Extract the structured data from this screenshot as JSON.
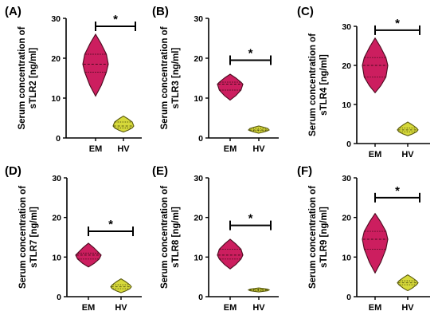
{
  "colors": {
    "em_fill": "#CC1E5F",
    "em_stroke": "#4A0A1E",
    "hv_fill": "#D6D93A",
    "hv_stroke": "#5A5A10",
    "axis": "#000000"
  },
  "chart_data": [
    {
      "type": "violin",
      "panel_label": "(A)",
      "ylabel_line1": "Serum concentration of",
      "ylabel_line2": "sTLR2 [ng/ml]",
      "ylim": [
        0,
        30
      ],
      "yticks": [
        "0",
        "10",
        "20",
        "30"
      ],
      "categories": [
        "EM",
        "HV"
      ],
      "series": [
        {
          "values": {
            "min": 10.5,
            "q1": 16.5,
            "median": 18.5,
            "q3": 21,
            "max": 26
          }
        },
        {
          "values": {
            "min": 1.5,
            "q1": 2.5,
            "median": 3,
            "q3": 4,
            "max": 5.5
          }
        }
      ],
      "significance": "*",
      "bracket_y": 28
    },
    {
      "type": "violin",
      "panel_label": "(B)",
      "ylabel_line1": "Serum concentration of",
      "ylabel_line2": "sTLR3 [ng/ml]",
      "ylim": [
        0,
        30
      ],
      "yticks": [
        "0",
        "10",
        "20",
        "30"
      ],
      "categories": [
        "EM",
        "HV"
      ],
      "series": [
        {
          "values": {
            "min": 9.5,
            "q1": 12,
            "median": 13.5,
            "q3": 14,
            "max": 16
          }
        },
        {
          "values": {
            "min": 1.2,
            "q1": 1.8,
            "median": 2,
            "q3": 2.4,
            "max": 3
          }
        }
      ],
      "significance": "*",
      "bracket_y": 19.5
    },
    {
      "type": "violin",
      "panel_label": "(C)",
      "ylabel_line1": "Serum concentration of",
      "ylabel_line2": "sTLR4 [ng/ml]",
      "ylim": [
        0,
        30
      ],
      "yticks": [
        "0",
        "10",
        "20",
        "30"
      ],
      "categories": [
        "EM",
        "HV"
      ],
      "series": [
        {
          "values": {
            "min": 13,
            "q1": 17,
            "median": 20,
            "q3": 22,
            "max": 27
          }
        },
        {
          "values": {
            "min": 2,
            "q1": 3,
            "median": 3.5,
            "q3": 4,
            "max": 5.5
          }
        }
      ],
      "significance": "*",
      "bracket_y": 29
    },
    {
      "type": "violin",
      "panel_label": "(D)",
      "ylabel_line1": "Serum concentration of",
      "ylabel_line2": "sTLR7 [ng/ml]",
      "ylim": [
        0,
        30
      ],
      "yticks": [
        "0",
        "10",
        "20",
        "30"
      ],
      "categories": [
        "EM",
        "HV"
      ],
      "series": [
        {
          "values": {
            "min": 7.5,
            "q1": 9.5,
            "median": 10.5,
            "q3": 11,
            "max": 13.5
          }
        },
        {
          "values": {
            "min": 1,
            "q1": 2,
            "median": 2.5,
            "q3": 3,
            "max": 4.5
          }
        }
      ],
      "significance": "*",
      "bracket_y": 16.5
    },
    {
      "type": "violin",
      "panel_label": "(E)",
      "ylabel_line1": "Serum concentration of",
      "ylabel_line2": "sTLR8 [ng/ml]",
      "ylim": [
        0,
        30
      ],
      "yticks": [
        "0",
        "10",
        "20",
        "30"
      ],
      "categories": [
        "EM",
        "HV"
      ],
      "series": [
        {
          "values": {
            "min": 7,
            "q1": 9.5,
            "median": 10.5,
            "q3": 12,
            "max": 14.5
          }
        },
        {
          "values": {
            "min": 1.2,
            "q1": 1.5,
            "median": 1.7,
            "q3": 1.9,
            "max": 2.2
          }
        }
      ],
      "significance": "*",
      "bracket_y": 18
    },
    {
      "type": "violin",
      "panel_label": "(F)",
      "ylabel_line1": "Serum concentration of",
      "ylabel_line2": "sTLR9 [ng/ml]",
      "ylim": [
        0,
        30
      ],
      "yticks": [
        "0",
        "10",
        "20",
        "30"
      ],
      "categories": [
        "EM",
        "HV"
      ],
      "series": [
        {
          "values": {
            "min": 6,
            "q1": 12,
            "median": 14.5,
            "q3": 16.5,
            "max": 21
          }
        },
        {
          "values": {
            "min": 1.5,
            "q1": 3,
            "median": 3.5,
            "q3": 4,
            "max": 5.5
          }
        }
      ],
      "significance": "*",
      "bracket_y": 25
    }
  ]
}
